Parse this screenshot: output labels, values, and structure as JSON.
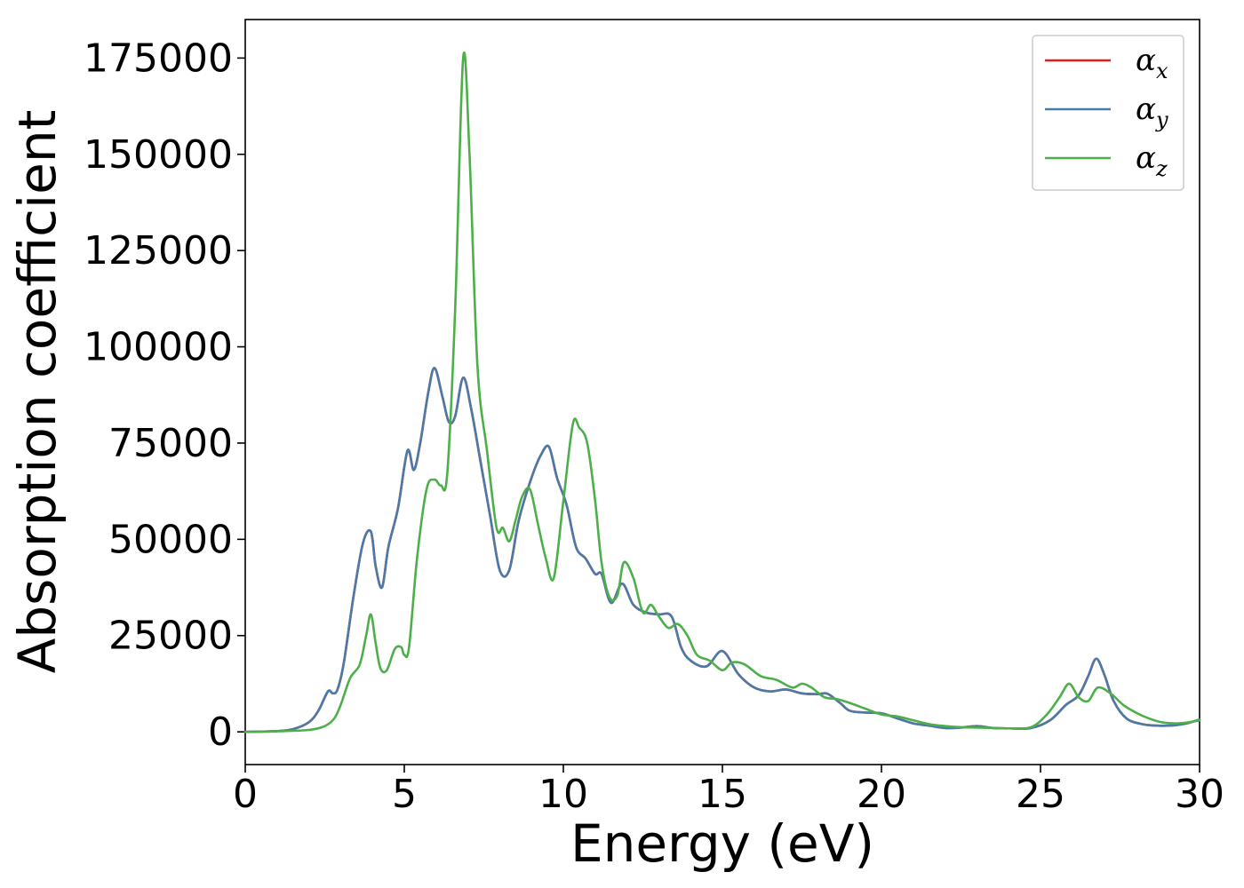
{
  "chart_data": {
    "type": "line",
    "xlabel": "Energy (eV)",
    "ylabel": "Absorption coefficient",
    "xlim": [
      0,
      30
    ],
    "ylim": [
      -8500,
      185000
    ],
    "xticks": [
      0,
      5,
      10,
      15,
      20,
      25,
      30
    ],
    "xtick_labels": [
      "0",
      "5",
      "10",
      "15",
      "20",
      "25",
      "30"
    ],
    "yticks": [
      0,
      25000,
      50000,
      75000,
      100000,
      125000,
      150000,
      175000
    ],
    "ytick_labels": [
      "0",
      "25000",
      "50000",
      "75000",
      "100000",
      "125000",
      "150000",
      "175000"
    ],
    "grid": false,
    "legend_position": "top-right",
    "series": [
      {
        "name": "α",
        "subscript": "x",
        "color": "#e41a1c",
        "x": [
          0,
          1,
          1.5,
          2,
          2.3,
          2.6,
          2.75,
          2.9,
          3.1,
          3.4,
          3.7,
          3.95,
          4.1,
          4.3,
          4.5,
          4.8,
          5.1,
          5.3,
          5.5,
          5.75,
          5.95,
          6.2,
          6.4,
          6.6,
          6.85,
          7.1,
          7.4,
          7.7,
          8.0,
          8.3,
          8.6,
          9.0,
          9.3,
          9.55,
          9.8,
          10.1,
          10.4,
          10.7,
          11.0,
          11.2,
          11.5,
          11.85,
          12.2,
          12.6,
          13.0,
          13.4,
          13.7,
          14.0,
          14.5,
          15.0,
          15.5,
          16.0,
          16.5,
          17.0,
          17.5,
          18.0,
          18.3,
          18.7,
          19.0,
          19.5,
          20.0,
          20.5,
          21.0,
          21.5,
          22.0,
          22.5,
          23.0,
          23.5,
          24.0,
          24.7,
          25.3,
          25.8,
          26.2,
          26.5,
          26.75,
          27.0,
          27.3,
          27.7,
          28.2,
          28.7,
          29.2,
          29.6,
          30
        ],
        "values": [
          0,
          200,
          700,
          2500,
          5500,
          10500,
          10000,
          11000,
          18000,
          35000,
          49000,
          52000,
          43000,
          37500,
          48000,
          58000,
          73000,
          68000,
          75000,
          88000,
          94500,
          87000,
          80500,
          82000,
          92000,
          84000,
          70000,
          56000,
          42000,
          42000,
          55000,
          66000,
          72000,
          74000,
          66000,
          59000,
          48000,
          45000,
          41000,
          41000,
          33500,
          38500,
          33000,
          31000,
          30500,
          30000,
          22000,
          18500,
          17000,
          21000,
          15000,
          11500,
          10500,
          11000,
          10000,
          9800,
          9900,
          7500,
          5500,
          5000,
          4800,
          3500,
          2200,
          1600,
          1000,
          1100,
          1500,
          1000,
          900,
          1000,
          3000,
          7000,
          9500,
          14500,
          19000,
          15000,
          8000,
          3500,
          2000,
          1600,
          1700,
          2200,
          3200
        ]
      },
      {
        "name": "α",
        "subscript": "y",
        "color": "#4a7aa8",
        "x": [
          0,
          1,
          1.5,
          2,
          2.3,
          2.6,
          2.75,
          2.9,
          3.1,
          3.4,
          3.7,
          3.95,
          4.1,
          4.3,
          4.5,
          4.8,
          5.1,
          5.3,
          5.5,
          5.75,
          5.95,
          6.2,
          6.4,
          6.6,
          6.85,
          7.1,
          7.4,
          7.7,
          8.0,
          8.3,
          8.6,
          9.0,
          9.3,
          9.55,
          9.8,
          10.1,
          10.4,
          10.7,
          11.0,
          11.2,
          11.5,
          11.85,
          12.2,
          12.6,
          13.0,
          13.4,
          13.7,
          14.0,
          14.5,
          15.0,
          15.5,
          16.0,
          16.5,
          17.0,
          17.5,
          18.0,
          18.3,
          18.7,
          19.0,
          19.5,
          20.0,
          20.5,
          21.0,
          21.5,
          22.0,
          22.5,
          23.0,
          23.5,
          24.0,
          24.7,
          25.3,
          25.8,
          26.2,
          26.5,
          26.75,
          27.0,
          27.3,
          27.7,
          28.2,
          28.7,
          29.2,
          29.6,
          30
        ],
        "values": [
          0,
          200,
          700,
          2500,
          5500,
          10500,
          10000,
          11000,
          18000,
          35000,
          49000,
          52000,
          43000,
          37500,
          48000,
          58000,
          73000,
          68000,
          75000,
          88000,
          94500,
          87000,
          80500,
          82000,
          92000,
          84000,
          70000,
          56000,
          42000,
          42000,
          55000,
          66000,
          72000,
          74000,
          66000,
          59000,
          48000,
          45000,
          41000,
          41000,
          33500,
          38500,
          33000,
          31000,
          30500,
          30000,
          22000,
          18500,
          17000,
          21000,
          15000,
          11500,
          10500,
          11000,
          10000,
          9800,
          9900,
          7500,
          5500,
          5000,
          4800,
          3500,
          2200,
          1600,
          1000,
          1100,
          1500,
          1000,
          900,
          1000,
          3000,
          7000,
          9500,
          14500,
          19000,
          15000,
          8000,
          3500,
          2000,
          1600,
          1700,
          2200,
          3200
        ]
      },
      {
        "name": "α",
        "subscript": "z",
        "color": "#4daf4a",
        "x": [
          0,
          1,
          2,
          2.5,
          2.8,
          3.0,
          3.3,
          3.6,
          3.8,
          3.95,
          4.1,
          4.25,
          4.45,
          4.7,
          4.9,
          5.0,
          5.15,
          5.4,
          5.7,
          5.95,
          6.15,
          6.35,
          6.6,
          6.85,
          7.05,
          7.3,
          7.6,
          7.9,
          8.1,
          8.3,
          8.5,
          8.7,
          8.95,
          9.2,
          9.45,
          9.7,
          10.0,
          10.3,
          10.5,
          10.75,
          11.0,
          11.2,
          11.45,
          11.7,
          11.9,
          12.2,
          12.5,
          12.75,
          13.0,
          13.3,
          13.6,
          13.9,
          14.2,
          14.6,
          15.0,
          15.3,
          15.7,
          16.2,
          16.7,
          17.2,
          17.5,
          17.8,
          18.2,
          18.6,
          19.0,
          19.5,
          20.0,
          20.5,
          21.0,
          21.5,
          22.0,
          22.5,
          23.0,
          23.5,
          24.0,
          24.7,
          25.2,
          25.6,
          25.9,
          26.2,
          26.5,
          26.8,
          27.2,
          27.6,
          28.0,
          28.4,
          28.8,
          29.2,
          29.6,
          30
        ],
        "values": [
          0,
          150,
          500,
          1500,
          3500,
          7000,
          14000,
          17500,
          25000,
          30500,
          23000,
          16500,
          16000,
          21500,
          22000,
          20000,
          22000,
          45000,
          63000,
          65500,
          64000,
          67000,
          110000,
          175000,
          150000,
          95000,
          73000,
          53000,
          53000,
          49500,
          55000,
          61000,
          63000,
          54000,
          45000,
          40000,
          60000,
          80000,
          79000,
          75000,
          60000,
          44000,
          35000,
          35500,
          44000,
          40000,
          31000,
          33000,
          30000,
          27000,
          28000,
          25000,
          20000,
          18500,
          16000,
          18000,
          17500,
          14500,
          13500,
          11500,
          12500,
          11500,
          9000,
          8500,
          7500,
          6000,
          4500,
          4000,
          3000,
          2000,
          1500,
          1200,
          1100,
          1000,
          900,
          1200,
          4500,
          9000,
          12500,
          9000,
          8000,
          11500,
          10000,
          7000,
          5000,
          3500,
          2500,
          2200,
          2400,
          3000
        ]
      }
    ]
  }
}
